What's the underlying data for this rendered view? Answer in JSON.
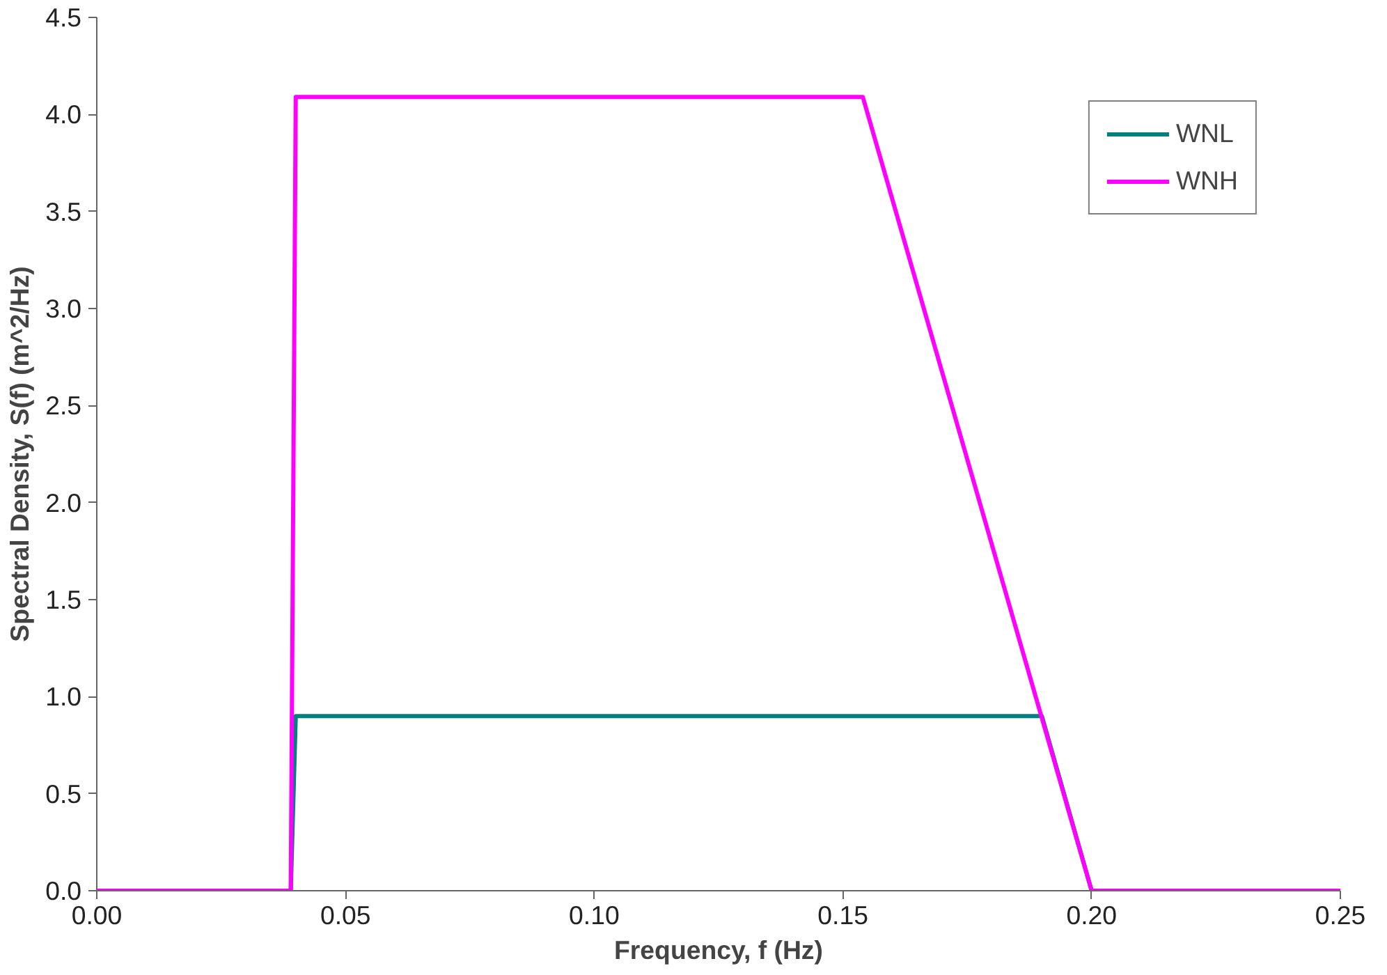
{
  "chart_data": {
    "type": "line",
    "xlabel": "Frequency, f (Hz)",
    "ylabel": "Spectral Density, S(f) (m^2/Hz)",
    "xlim": [
      0,
      0.25
    ],
    "ylim": [
      0,
      4.5
    ],
    "xticks": [
      {
        "value": 0,
        "label": "0.00"
      },
      {
        "value": 0.05,
        "label": "0.05"
      },
      {
        "value": 0.1,
        "label": "0.10"
      },
      {
        "value": 0.15,
        "label": "0.15"
      },
      {
        "value": 0.2,
        "label": "0.20"
      },
      {
        "value": 0.25,
        "label": "0.25"
      }
    ],
    "yticks": [
      {
        "value": 0,
        "label": "0.0"
      },
      {
        "value": 0.5,
        "label": "0.5"
      },
      {
        "value": 1,
        "label": "1.0"
      },
      {
        "value": 1.5,
        "label": "1.5"
      },
      {
        "value": 2,
        "label": "2.0"
      },
      {
        "value": 2.5,
        "label": "2.5"
      },
      {
        "value": 3,
        "label": "3.0"
      },
      {
        "value": 3.5,
        "label": "3.5"
      },
      {
        "value": 4,
        "label": "4.0"
      },
      {
        "value": 4.5,
        "label": "4.5"
      }
    ],
    "grid": false,
    "legend": "top right",
    "marker": "none",
    "line_style": "solid",
    "series": [
      {
        "name": "WNL",
        "color": "#008080",
        "x": [
          0,
          0.039,
          0.04,
          0.19,
          0.2,
          0.25
        ],
        "values": [
          0,
          0,
          0.9,
          0.9,
          0,
          0
        ]
      },
      {
        "name": "WNH",
        "color": "#ff00ff",
        "x": [
          0,
          0.039,
          0.04,
          0.154,
          0.2,
          0.25
        ],
        "values": [
          0,
          0,
          4.09,
          4.09,
          0,
          0
        ]
      }
    ]
  }
}
